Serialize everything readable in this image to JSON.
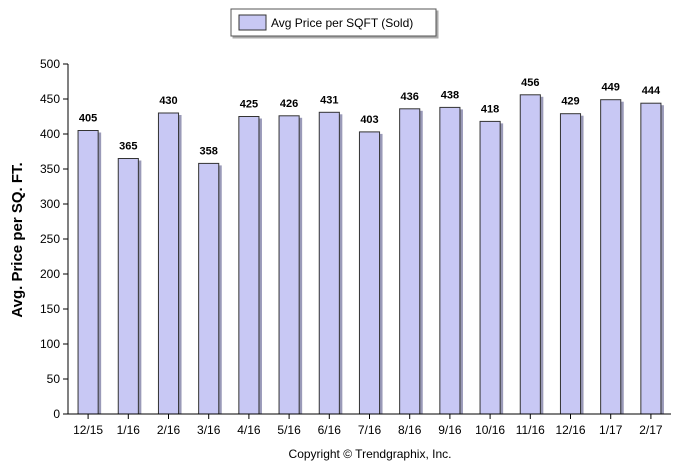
{
  "chart_data": {
    "type": "bar",
    "categories": [
      "12/15",
      "1/16",
      "2/16",
      "3/16",
      "4/16",
      "5/16",
      "6/16",
      "7/16",
      "8/16",
      "9/16",
      "10/16",
      "11/16",
      "12/16",
      "1/17",
      "2/17"
    ],
    "series": [
      {
        "name": "Avg Price per SQFT (Sold)",
        "values": [
          405,
          365,
          430,
          358,
          425,
          426,
          431,
          403,
          436,
          438,
          418,
          456,
          429,
          449,
          444
        ],
        "color": "#c8c8f4"
      }
    ],
    "data_labels": [
      "405",
      "365",
      "430",
      "358",
      "425",
      "426",
      "431",
      "403",
      "436",
      "438",
      "418",
      "456",
      "429",
      "449",
      "444"
    ],
    "ylabel": "Avg. Price per SQ. FT.",
    "xlabel": "",
    "ylim": [
      0,
      500
    ],
    "yticks": [
      0,
      50,
      100,
      150,
      200,
      250,
      300,
      350,
      400,
      450,
      500
    ],
    "grid": false,
    "legend_position": "top-center"
  },
  "footer": {
    "copyright": "Copyright © Trendgraphix, Inc."
  }
}
